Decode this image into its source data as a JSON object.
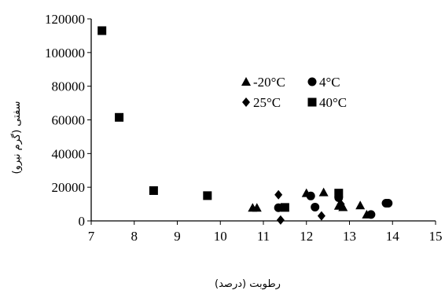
{
  "chart_data": {
    "type": "scatter",
    "xlabel": "رطوبت (درصد)",
    "ylabel": "سفتی (گرم نیرو)",
    "xlim": [
      7,
      15
    ],
    "ylim": [
      0,
      120000
    ],
    "x_ticks": [
      7,
      8,
      9,
      10,
      11,
      12,
      13,
      14,
      15
    ],
    "y_ticks": [
      0,
      20000,
      40000,
      60000,
      80000,
      100000,
      120000
    ],
    "y_tick_labels": [
      "0",
      "20000",
      "40000",
      "60000",
      "80000",
      "100000",
      "120000"
    ],
    "grid": false,
    "legend_position": "top-right inside plot",
    "series": [
      {
        "name": "-20°C",
        "marker": "triangle",
        "points": [
          [
            10.75,
            7800
          ],
          [
            10.85,
            7800
          ],
          [
            12.0,
            16500
          ],
          [
            12.4,
            17000
          ],
          [
            12.75,
            9000
          ],
          [
            12.85,
            8200
          ],
          [
            13.25,
            9200
          ],
          [
            13.4,
            3800
          ]
        ]
      },
      {
        "name": "4°C",
        "marker": "circle",
        "points": [
          [
            11.35,
            7800
          ],
          [
            12.1,
            14800
          ],
          [
            12.2,
            8200
          ],
          [
            12.75,
            13800
          ],
          [
            13.5,
            3800
          ],
          [
            13.85,
            10500
          ],
          [
            13.9,
            10500
          ]
        ]
      },
      {
        "name": "25°C",
        "marker": "diamond",
        "points": [
          [
            11.35,
            15500
          ],
          [
            11.4,
            500
          ],
          [
            12.35,
            3000
          ],
          [
            12.8,
            10000
          ]
        ]
      },
      {
        "name": "40°C",
        "marker": "square",
        "points": [
          [
            7.25,
            113000
          ],
          [
            7.65,
            61500
          ],
          [
            8.45,
            18000
          ],
          [
            9.7,
            15000
          ],
          [
            11.5,
            8000
          ],
          [
            12.75,
            16500
          ]
        ]
      }
    ]
  }
}
